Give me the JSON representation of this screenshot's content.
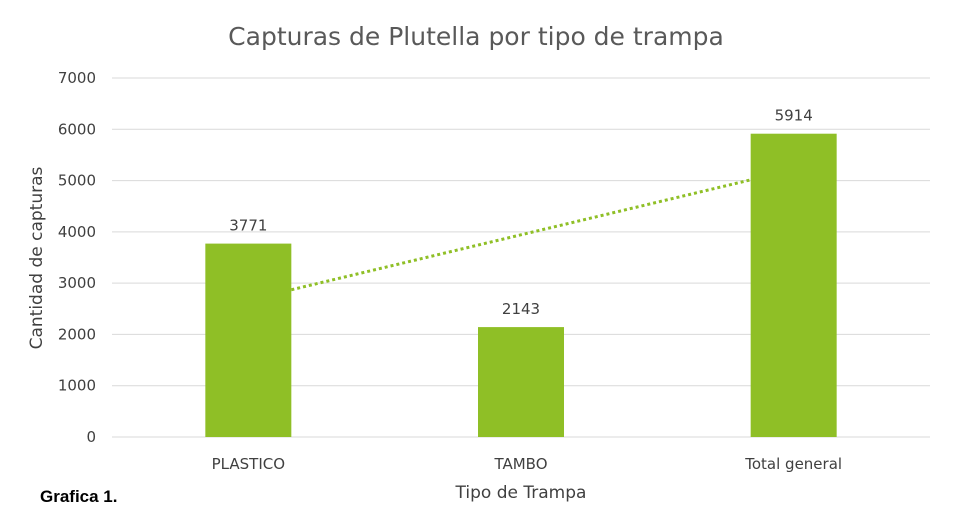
{
  "chart_data": {
    "type": "bar",
    "title": "Capturas de Plutella por tipo de trampa",
    "xlabel": "Tipo de Trampa",
    "ylabel": "Cantidad de capturas",
    "categories": [
      "PLASTICO",
      "TAMBO",
      "Total general"
    ],
    "values": [
      3771,
      2143,
      5914
    ],
    "data_labels": [
      "3771",
      "2143",
      "5914"
    ],
    "ylim": [
      0,
      7000
    ],
    "yticks": [
      0,
      1000,
      2000,
      3000,
      4000,
      5000,
      6000,
      7000
    ],
    "grid": true,
    "legend": "none",
    "trendline": {
      "type": "linear",
      "style": "dotted",
      "color": "#8fbf26"
    },
    "colors": {
      "bar": "#8fbf26",
      "grid": "#d9d9d9"
    }
  },
  "caption": "Grafica 1."
}
